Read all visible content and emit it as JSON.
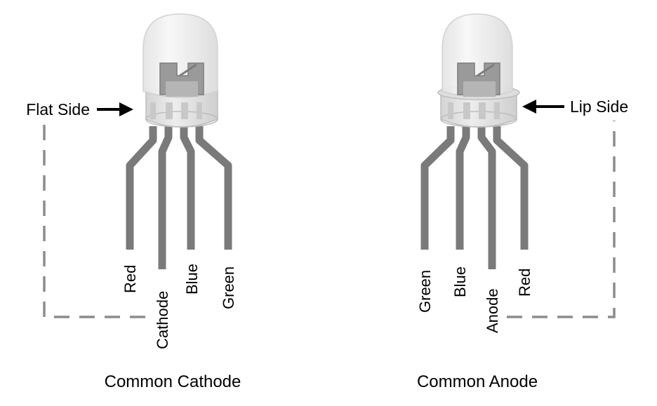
{
  "cathode_led": {
    "side_label": "Flat Side",
    "title": "Common Cathode",
    "pins": [
      "Red",
      "Cathode",
      "Blue",
      "Green"
    ]
  },
  "anode_led": {
    "side_label": "Lip Side",
    "title": "Common Anode",
    "pins": [
      "Green",
      "Blue",
      "Anode",
      "Red"
    ]
  },
  "colors": {
    "leg": "#7a7a7a",
    "dash": "#8c8c8c",
    "dome": "#f2f2f2",
    "base": "#e6e6e6"
  }
}
